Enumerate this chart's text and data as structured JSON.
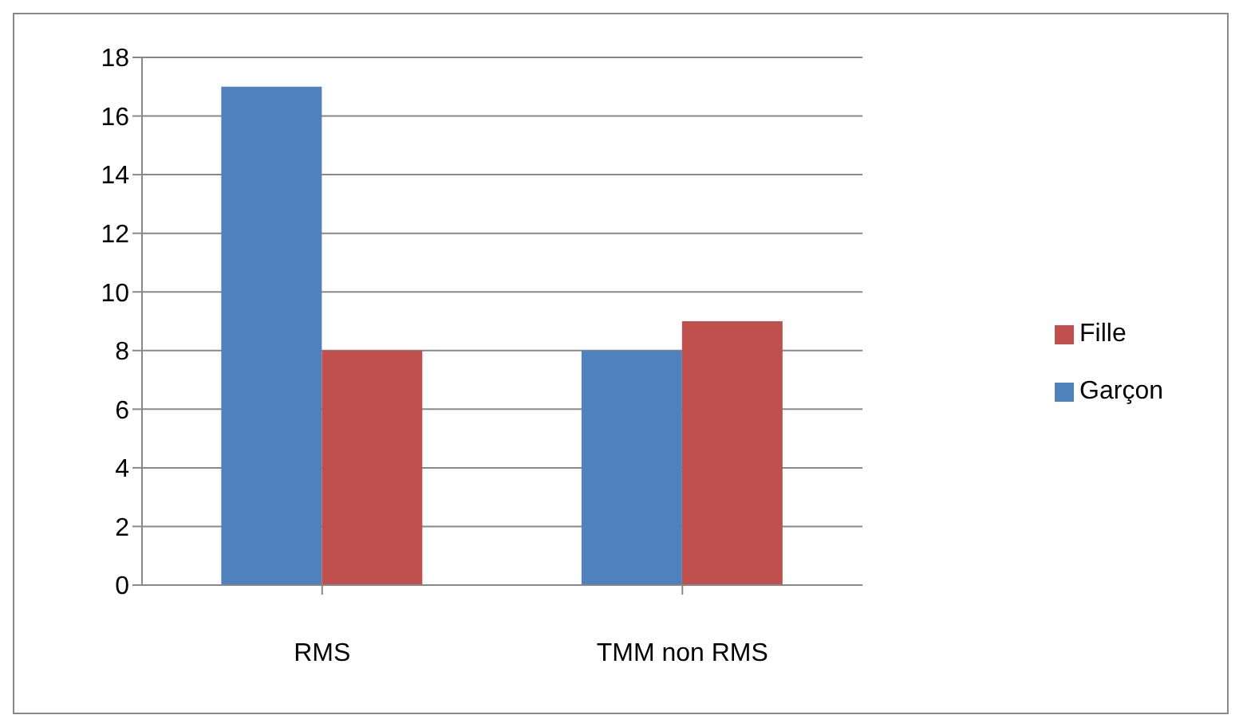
{
  "chart_data": {
    "type": "bar",
    "categories": [
      "RMS",
      "TMM non RMS"
    ],
    "series": [
      {
        "name": "Garçon",
        "color": "#4f81bd",
        "values": [
          17,
          8
        ]
      },
      {
        "name": "Fille",
        "color": "#c0504d",
        "values": [
          8,
          9
        ]
      }
    ],
    "ylim": [
      0,
      18
    ],
    "yticks": [
      0,
      2,
      4,
      6,
      8,
      10,
      12,
      14,
      16,
      18
    ],
    "grid": "y",
    "legend": "right"
  }
}
